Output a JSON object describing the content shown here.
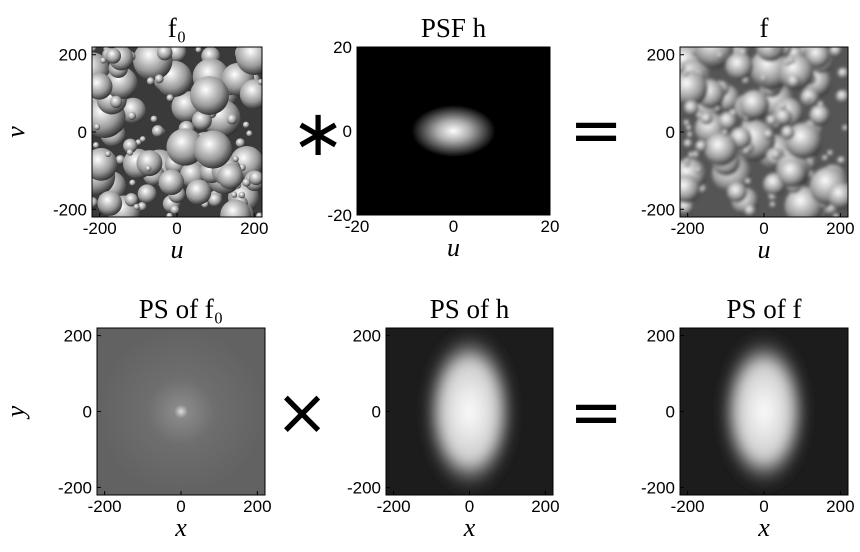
{
  "chart_data": [
    {
      "type": "image",
      "title": "f₀",
      "xlabel": "u",
      "ylabel": "v",
      "xlim": [
        -220,
        220
      ],
      "ylim": [
        -220,
        220
      ],
      "xticks": [
        -200,
        0,
        200
      ],
      "yticks": [
        -200,
        0,
        200
      ],
      "colormap": "gray"
    },
    {
      "type": "image",
      "title": "PSF h",
      "xlabel": "u",
      "xlim": [
        -20,
        20
      ],
      "ylim": [
        -20,
        20
      ],
      "xticks": [
        -20,
        0,
        20
      ],
      "yticks": [
        -20,
        0,
        20
      ],
      "colormap": "gray"
    },
    {
      "type": "image",
      "title": "f",
      "xlabel": "u",
      "xlim": [
        -220,
        220
      ],
      "ylim": [
        -220,
        220
      ],
      "xticks": [
        -200,
        0,
        200
      ],
      "yticks": [
        -200,
        0,
        200
      ],
      "colormap": "gray"
    },
    {
      "type": "image",
      "title": "PS of f₀",
      "xlabel": "x",
      "ylabel": "y",
      "xlim": [
        -220,
        220
      ],
      "ylim": [
        -220,
        220
      ],
      "xticks": [
        -200,
        0,
        200
      ],
      "yticks": [
        -200,
        0,
        200
      ],
      "colormap": "gray"
    },
    {
      "type": "image",
      "title": "PS of h",
      "xlabel": "x",
      "xlim": [
        -220,
        220
      ],
      "ylim": [
        -220,
        220
      ],
      "xticks": [
        -200,
        0,
        200
      ],
      "yticks": [
        -200,
        0,
        200
      ],
      "colormap": "gray"
    },
    {
      "type": "image",
      "title": "PS of f",
      "xlabel": "x",
      "xlim": [
        -220,
        220
      ],
      "ylim": [
        -220,
        220
      ],
      "xticks": [
        -200,
        0,
        200
      ],
      "yticks": [
        -200,
        0,
        200
      ],
      "colormap": "gray"
    }
  ],
  "operators": [
    "∗",
    "=",
    "×",
    "="
  ]
}
